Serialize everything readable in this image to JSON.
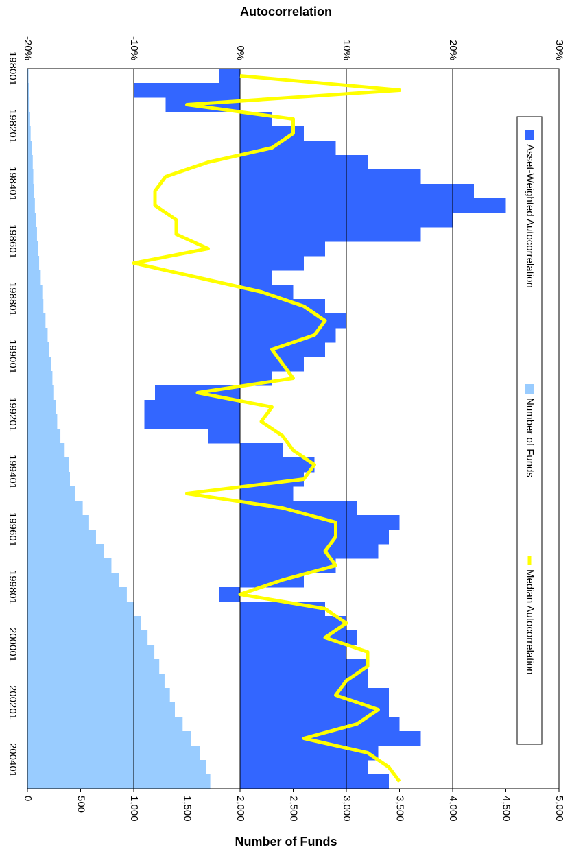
{
  "chart_data": {
    "type": "bar",
    "y_label": "Autocorrelation",
    "y2_label": "Number of Funds",
    "categories": [
      "198001",
      null,
      null,
      null,
      "198201",
      null,
      null,
      null,
      "198401",
      null,
      null,
      null,
      "198601",
      null,
      null,
      null,
      "198801",
      null,
      null,
      null,
      "199001",
      null,
      null,
      null,
      "199201",
      null,
      null,
      null,
      "199401",
      null,
      null,
      null,
      "199601",
      null,
      null,
      null,
      "199801",
      null,
      null,
      null,
      "200001",
      null,
      null,
      null,
      "200201",
      null,
      null,
      null,
      "200401",
      null
    ],
    "series": [
      {
        "name": "Asset-Weighted Autocorrelation",
        "type": "bar",
        "color": "#3366ff",
        "values": [
          -2,
          -10,
          -7,
          3,
          6,
          9,
          12,
          17,
          22,
          25,
          20,
          17,
          8,
          6,
          3,
          5,
          8,
          10,
          9,
          8,
          6,
          3,
          -8,
          -9,
          -9,
          -3,
          4,
          7,
          6,
          5,
          11,
          15,
          14,
          13,
          9,
          6,
          -2,
          8,
          10,
          11,
          10,
          12,
          12,
          14,
          14,
          15,
          17,
          13,
          12,
          14
        ]
      },
      {
        "name": "Number of Funds",
        "type": "bar",
        "axis": "y2",
        "color": "#99ccff",
        "values": [
          10,
          15,
          20,
          25,
          30,
          40,
          50,
          55,
          60,
          70,
          80,
          90,
          100,
          110,
          125,
          140,
          150,
          170,
          190,
          205,
          220,
          235,
          250,
          265,
          280,
          310,
          350,
          390,
          400,
          450,
          520,
          580,
          645,
          720,
          790,
          860,
          935,
          1000,
          1070,
          1130,
          1194,
          1240,
          1290,
          1340,
          1387,
          1460,
          1540,
          1620,
          1680,
          1720
        ]
      },
      {
        "name": "Median Autocorrelation",
        "type": "line",
        "color": "#ffff00",
        "values": [
          0,
          15,
          -5,
          5,
          5,
          3,
          -3,
          -7,
          -8,
          -8,
          -6,
          -6,
          -3,
          -10,
          -4,
          2,
          6,
          8,
          7,
          3,
          4,
          5,
          -4,
          3,
          2,
          4,
          5,
          7,
          6,
          -5,
          4,
          9,
          9,
          8,
          9,
          4,
          0,
          8,
          10,
          8,
          12,
          12,
          10,
          9,
          13,
          11,
          6,
          12,
          14,
          15
        ]
      }
    ],
    "ylim": [
      -20,
      30
    ],
    "yticks": [
      {
        "value": -20,
        "label": "-20%"
      },
      {
        "value": -10,
        "label": "-10%"
      },
      {
        "value": 0,
        "label": "0%"
      },
      {
        "value": 10,
        "label": "10%"
      },
      {
        "value": 20,
        "label": "20%"
      },
      {
        "value": 30,
        "label": "30%"
      }
    ],
    "y2lim": [
      0,
      5000
    ],
    "y2ticks": [
      0,
      500,
      {
        "value": 1000,
        "label": "1,000"
      },
      {
        "value": 1500,
        "label": "1,500"
      },
      {
        "value": 2000,
        "label": "2,000"
      },
      {
        "value": 2500,
        "label": "2,500"
      },
      {
        "value": 3000,
        "label": "3,000"
      },
      {
        "value": 3500,
        "label": "3,500"
      },
      {
        "value": 4000,
        "label": "4,000"
      },
      {
        "value": 4500,
        "label": "4,500"
      },
      {
        "value": 5000,
        "label": "5,000"
      }
    ],
    "grid": true,
    "legend": "top"
  }
}
